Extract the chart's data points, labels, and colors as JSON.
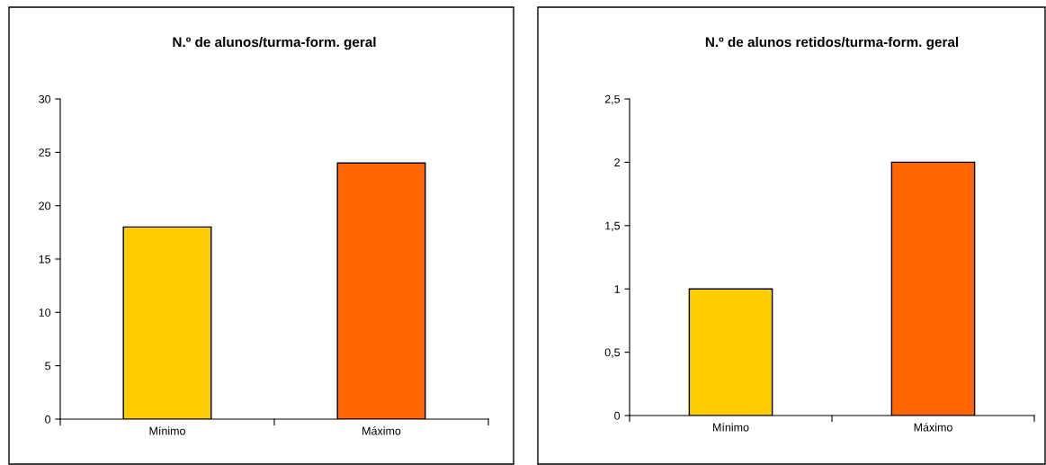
{
  "chart_data": [
    {
      "type": "bar",
      "title": "N.º de alunos/turma-form. geral",
      "categories": [
        "Mínimo",
        "Máximo"
      ],
      "values": [
        18,
        24
      ],
      "colors": [
        "#ffcc00",
        "#ff6600"
      ],
      "ylim": [
        0,
        30
      ],
      "yticks": [
        0,
        5,
        10,
        15,
        20,
        25,
        30
      ],
      "grid": false,
      "legend": false
    },
    {
      "type": "bar",
      "title": "N.º de alunos retidos/turma-form. geral",
      "categories": [
        "Mínimo",
        "Máximo"
      ],
      "values": [
        1,
        2
      ],
      "colors": [
        "#ffcc00",
        "#ff6600"
      ],
      "ylim": [
        0,
        2.5
      ],
      "yticks": [
        0,
        {
          "value": 0.5,
          "label": "0,5"
        },
        1,
        {
          "value": 1.5,
          "label": "1,5"
        },
        2,
        {
          "value": 2.5,
          "label": "2,5"
        }
      ],
      "grid": false,
      "legend": false
    }
  ]
}
